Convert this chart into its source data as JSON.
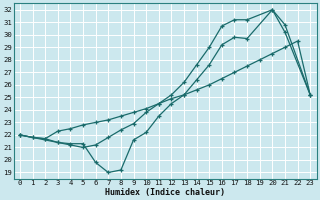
{
  "xlabel": "Humidex (Indice chaleur)",
  "bg_color": "#cce8ee",
  "grid_color": "#ffffff",
  "line_color": "#1a6b6b",
  "xlim": [
    -0.5,
    23.5
  ],
  "ylim": [
    18.5,
    32.5
  ],
  "xticks": [
    0,
    1,
    2,
    3,
    4,
    5,
    6,
    7,
    8,
    9,
    10,
    11,
    12,
    13,
    14,
    15,
    16,
    17,
    18,
    19,
    20,
    21,
    22,
    23
  ],
  "yticks": [
    19,
    20,
    21,
    22,
    23,
    24,
    25,
    26,
    27,
    28,
    29,
    30,
    31,
    32
  ],
  "line1_x": [
    0,
    1,
    2,
    3,
    4,
    5,
    6,
    7,
    8,
    9,
    10,
    11,
    12,
    13,
    14,
    15,
    16,
    17,
    18,
    20,
    21,
    23
  ],
  "line1_y": [
    22.0,
    21.8,
    21.7,
    21.4,
    21.3,
    21.3,
    19.8,
    19.0,
    19.2,
    21.6,
    22.2,
    23.5,
    24.5,
    25.2,
    26.4,
    27.6,
    29.2,
    29.8,
    29.7,
    32.0,
    30.2,
    25.2
  ],
  "line2_x": [
    0,
    1,
    2,
    3,
    4,
    5,
    6,
    7,
    8,
    9,
    10,
    11,
    12,
    13,
    14,
    15,
    16,
    17,
    18,
    19,
    20,
    21,
    22,
    23
  ],
  "line2_y": [
    22.0,
    21.8,
    21.7,
    22.3,
    22.5,
    22.8,
    23.0,
    23.2,
    23.5,
    23.8,
    24.1,
    24.5,
    24.9,
    25.2,
    25.6,
    26.0,
    26.5,
    27.0,
    27.5,
    28.0,
    28.5,
    29.0,
    29.5,
    25.2
  ],
  "line3_x": [
    0,
    3,
    4,
    5,
    6,
    7,
    8,
    9,
    10,
    11,
    12,
    13,
    14,
    15,
    16,
    17,
    18,
    20,
    21,
    23
  ],
  "line3_y": [
    22.0,
    21.4,
    21.2,
    21.0,
    21.2,
    21.8,
    22.4,
    22.9,
    23.8,
    24.5,
    25.2,
    26.2,
    27.6,
    29.0,
    30.7,
    31.2,
    31.2,
    32.0,
    30.8,
    25.2
  ]
}
